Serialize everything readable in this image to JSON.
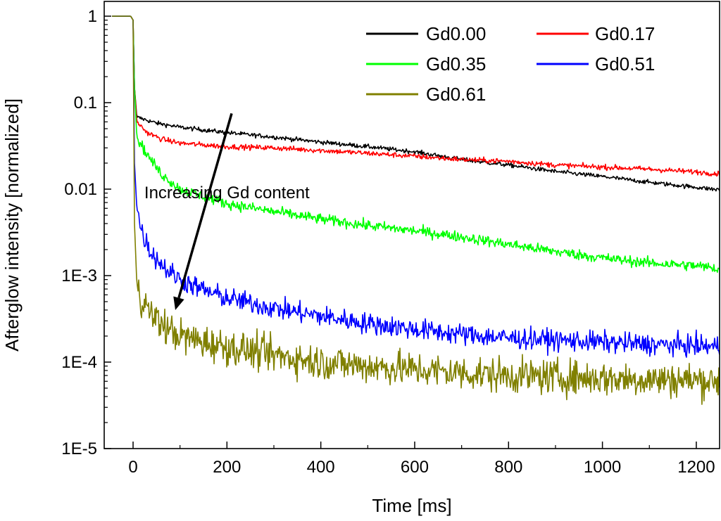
{
  "chart_data": {
    "type": "line",
    "title": "",
    "xlabel": "Time [ms]",
    "ylabel": "Afterglow intensity [normalized]",
    "xlim": [
      -45,
      1250
    ],
    "ylim": [
      1e-05,
      1.5
    ],
    "y_scale": "log",
    "grid": false,
    "legend_position": "top-right",
    "x_ticks": [
      0,
      200,
      400,
      600,
      800,
      1000,
      1200
    ],
    "x_tick_labels": [
      "0",
      "200",
      "400",
      "600",
      "800",
      "1000",
      "1200"
    ],
    "y_ticks": [
      1,
      0.1,
      0.01,
      0.001,
      0.0001,
      1e-05
    ],
    "y_tick_labels": [
      "1",
      "0.1",
      "0.01",
      "1E-3",
      "1E-4",
      "1E-5"
    ],
    "series": [
      {
        "name": "Gd0.00",
        "color": "#000000",
        "noise": 0.025,
        "points": [
          [
            -45,
            1
          ],
          [
            -5,
            1
          ],
          [
            0,
            0.9
          ],
          [
            3,
            0.15
          ],
          [
            8,
            0.068
          ],
          [
            50,
            0.058
          ],
          [
            100,
            0.052
          ],
          [
            200,
            0.045
          ],
          [
            300,
            0.04
          ],
          [
            400,
            0.035
          ],
          [
            500,
            0.031
          ],
          [
            600,
            0.027
          ],
          [
            700,
            0.022
          ],
          [
            800,
            0.019
          ],
          [
            900,
            0.016
          ],
          [
            1000,
            0.014
          ],
          [
            1100,
            0.012
          ],
          [
            1200,
            0.0105
          ],
          [
            1250,
            0.0098
          ]
        ]
      },
      {
        "name": "Gd0.17",
        "color": "#ff0000",
        "noise": 0.03,
        "points": [
          [
            -45,
            1
          ],
          [
            -5,
            1
          ],
          [
            0,
            0.9
          ],
          [
            3,
            0.15
          ],
          [
            8,
            0.06
          ],
          [
            30,
            0.045
          ],
          [
            60,
            0.038
          ],
          [
            100,
            0.034
          ],
          [
            200,
            0.031
          ],
          [
            300,
            0.03
          ],
          [
            400,
            0.028
          ],
          [
            500,
            0.026
          ],
          [
            600,
            0.024
          ],
          [
            700,
            0.022
          ],
          [
            800,
            0.021
          ],
          [
            900,
            0.019
          ],
          [
            1000,
            0.018
          ],
          [
            1100,
            0.017
          ],
          [
            1200,
            0.0158
          ],
          [
            1250,
            0.015
          ]
        ]
      },
      {
        "name": "Gd0.35",
        "color": "#00ff00",
        "noise": 0.06,
        "points": [
          [
            -45,
            1
          ],
          [
            -5,
            1
          ],
          [
            0,
            0.9
          ],
          [
            3,
            0.15
          ],
          [
            8,
            0.04
          ],
          [
            30,
            0.025
          ],
          [
            60,
            0.015
          ],
          [
            100,
            0.01
          ],
          [
            200,
            0.0068
          ],
          [
            300,
            0.0055
          ],
          [
            400,
            0.0045
          ],
          [
            500,
            0.0038
          ],
          [
            600,
            0.0033
          ],
          [
            700,
            0.0028
          ],
          [
            800,
            0.0023
          ],
          [
            900,
            0.0019
          ],
          [
            1000,
            0.0016
          ],
          [
            1100,
            0.0014
          ],
          [
            1200,
            0.0013
          ],
          [
            1250,
            0.0012
          ]
        ]
      },
      {
        "name": "Gd0.51",
        "color": "#0000ff",
        "noise": 0.12,
        "points": [
          [
            -45,
            1
          ],
          [
            -5,
            1
          ],
          [
            0,
            0.9
          ],
          [
            3,
            0.02
          ],
          [
            8,
            0.006
          ],
          [
            20,
            0.003
          ],
          [
            40,
            0.0018
          ],
          [
            70,
            0.0012
          ],
          [
            100,
            0.0009
          ],
          [
            150,
            0.00068
          ],
          [
            200,
            0.00055
          ],
          [
            300,
            0.00042
          ],
          [
            400,
            0.00034
          ],
          [
            500,
            0.00028
          ],
          [
            600,
            0.00024
          ],
          [
            700,
            0.00021
          ],
          [
            800,
            0.00019
          ],
          [
            900,
            0.00018
          ],
          [
            1000,
            0.00017
          ],
          [
            1100,
            0.00016
          ],
          [
            1200,
            0.000155
          ],
          [
            1250,
            0.00015
          ]
        ]
      },
      {
        "name": "Gd0.61",
        "color": "#808000",
        "noise": 0.2,
        "points": [
          [
            -45,
            1
          ],
          [
            -5,
            1
          ],
          [
            0,
            0.9
          ],
          [
            3,
            0.004
          ],
          [
            8,
            0.0008
          ],
          [
            20,
            0.0005
          ],
          [
            40,
            0.00035
          ],
          [
            70,
            0.00025
          ],
          [
            100,
            0.0002
          ],
          [
            150,
            0.00017
          ],
          [
            200,
            0.00015
          ],
          [
            300,
            0.00012
          ],
          [
            400,
            0.0001
          ],
          [
            500,
            9e-05
          ],
          [
            600,
            8.2e-05
          ],
          [
            700,
            7.5e-05
          ],
          [
            800,
            7e-05
          ],
          [
            900,
            6.7e-05
          ],
          [
            1000,
            6.5e-05
          ],
          [
            1100,
            6.3e-05
          ],
          [
            1200,
            6.2e-05
          ],
          [
            1250,
            6e-05
          ]
        ]
      }
    ],
    "annotations": [
      {
        "text": "Increasing Gd content",
        "x_data": 200,
        "y_data": 0.01,
        "arrow_from": [
          210,
          0.075
        ],
        "arrow_to": [
          90,
          0.0004
        ]
      }
    ]
  }
}
